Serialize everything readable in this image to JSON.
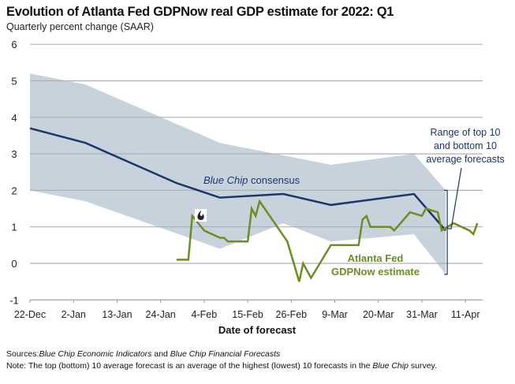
{
  "title": "Evolution of Atlanta Fed GDPNow real GDP estimate for 2022: Q1",
  "subtitle": "Quarterly percent change (SAAR)",
  "footer": {
    "sources_label": "Sources:",
    "sources_1": "Blue Chip Economic Indicators",
    "sources_and": " and ",
    "sources_2": "Blue Chip Financial Forecasts",
    "note_label": "Note:",
    "note_text": " The top (bottom) 10 average forecast is an average of the highest (lowest) 10 forecasts in the ",
    "note_italic": "Blue Chip",
    "note_end": " survey."
  },
  "chart_data": {
    "type": "line",
    "xlabel": "Date of forecast",
    "ylabel": "",
    "ylim": [
      -1,
      6
    ],
    "yticks": [
      -1,
      0,
      1,
      2,
      3,
      4,
      5,
      6
    ],
    "xlim": [
      "2021-12-22",
      "2022-04-17"
    ],
    "xticks": [
      "22-Dec",
      "2-Jan",
      "13-Jan",
      "24-Jan",
      "4-Feb",
      "15-Feb",
      "26-Feb",
      "9-Mar",
      "20-Mar",
      "31-Mar",
      "11-Apr"
    ],
    "grid": true,
    "colors": {
      "band": "#c7d2dc",
      "bluechip": "#1b3668",
      "gdpnow": "#6b8e23",
      "grid": "#b0b0b0"
    },
    "annotations": {
      "bluechip_italic": "Blue Chip",
      "bluechip_rest": " consensus",
      "gdpnow_1": "Atlanta Fed",
      "gdpnow_2": "GDPNow estimate",
      "range_1": "Range of top 10",
      "range_2": "and bottom 10",
      "range_3": "average forecasts"
    },
    "icon": "flame-icon",
    "series": [
      {
        "key": "band_top",
        "points": [
          [
            "2021-12-22",
            5.2
          ],
          [
            "2022-01-05",
            4.9
          ],
          [
            "2022-02-08",
            3.3
          ],
          [
            "2022-03-08",
            2.7
          ],
          [
            "2022-03-29",
            3.0
          ],
          [
            "2022-04-06",
            2.0
          ]
        ]
      },
      {
        "key": "band_bottom",
        "points": [
          [
            "2021-12-22",
            2.0
          ],
          [
            "2022-01-05",
            1.7
          ],
          [
            "2022-02-08",
            0.4
          ],
          [
            "2022-02-24",
            1.1
          ],
          [
            "2022-03-08",
            0.6
          ],
          [
            "2022-03-29",
            0.8
          ],
          [
            "2022-04-06",
            -0.3
          ]
        ]
      },
      {
        "name": "Blue Chip consensus",
        "key": "bluechip",
        "points": [
          [
            "2021-12-22",
            3.7
          ],
          [
            "2022-01-05",
            3.3
          ],
          [
            "2022-01-28",
            2.2
          ],
          [
            "2022-02-08",
            1.8
          ],
          [
            "2022-02-24",
            1.9
          ],
          [
            "2022-03-08",
            1.6
          ],
          [
            "2022-03-29",
            1.9
          ],
          [
            "2022-04-06",
            0.9
          ]
        ]
      },
      {
        "name": "Atlanta Fed GDPNow estimate",
        "key": "gdpnow",
        "points": [
          [
            "2022-01-28",
            0.1
          ],
          [
            "2022-01-31",
            0.1
          ],
          [
            "2022-02-01",
            1.3
          ],
          [
            "2022-02-04",
            0.9
          ],
          [
            "2022-02-08",
            0.7
          ],
          [
            "2022-02-09",
            0.7
          ],
          [
            "2022-02-10",
            0.6
          ],
          [
            "2022-02-15",
            0.6
          ],
          [
            "2022-02-16",
            1.5
          ],
          [
            "2022-02-17",
            1.3
          ],
          [
            "2022-02-18",
            1.7
          ],
          [
            "2022-02-25",
            0.6
          ],
          [
            "2022-02-28",
            -0.5
          ],
          [
            "2022-03-01",
            0.0
          ],
          [
            "2022-03-03",
            -0.4
          ],
          [
            "2022-03-08",
            0.5
          ],
          [
            "2022-03-15",
            0.5
          ],
          [
            "2022-03-16",
            1.2
          ],
          [
            "2022-03-17",
            1.3
          ],
          [
            "2022-03-18",
            1.0
          ],
          [
            "2022-03-23",
            1.0
          ],
          [
            "2022-03-24",
            0.9
          ],
          [
            "2022-03-28",
            1.4
          ],
          [
            "2022-03-31",
            1.3
          ],
          [
            "2022-04-01",
            1.5
          ],
          [
            "2022-04-04",
            1.4
          ],
          [
            "2022-04-05",
            0.9
          ],
          [
            "2022-04-08",
            1.1
          ],
          [
            "2022-04-12",
            0.9
          ],
          [
            "2022-04-13",
            0.8
          ],
          [
            "2022-04-14",
            1.1
          ]
        ]
      }
    ]
  }
}
